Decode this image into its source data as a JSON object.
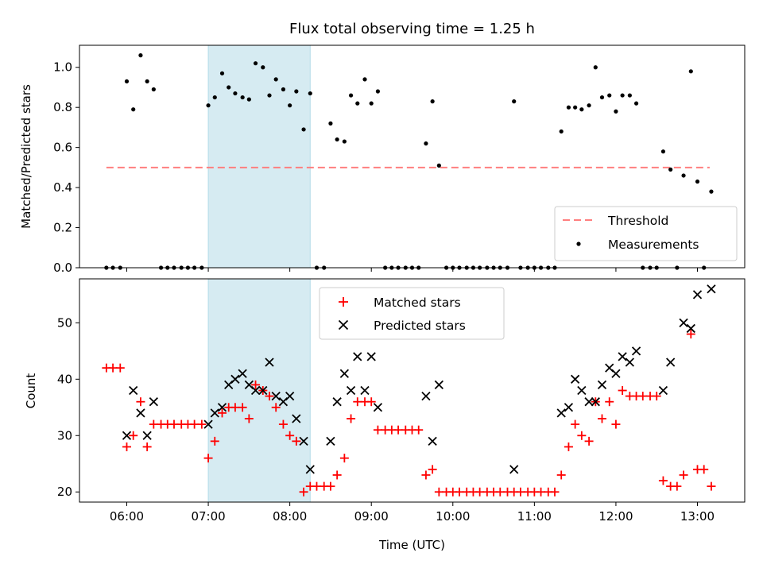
{
  "chart_data": [
    {
      "type": "scatter",
      "title": "Flux total observing time = 1.25 h",
      "ylabel": "Matched/Predicted stars",
      "xlabel": "",
      "xlim": [
        5.42,
        13.58
      ],
      "ylim": [
        0.0,
        1.11
      ],
      "yticks": [
        0.0,
        0.2,
        0.4,
        0.6,
        0.8,
        1.0
      ],
      "ytick_labels": [
        "0.0",
        "0.2",
        "0.4",
        "0.6",
        "0.8",
        "1.0"
      ],
      "xticks": [
        6,
        7,
        8,
        9,
        10,
        11,
        12,
        13
      ],
      "show_xtick_labels": false,
      "grid": false,
      "highlight_span": [
        7.0,
        8.25
      ],
      "highlight_color": "#add8e6",
      "legend_position": "lower-right",
      "threshold": {
        "name": "Threshold",
        "y": 0.5,
        "x_range": [
          5.75,
          13.15
        ],
        "color": "#ff7f7f",
        "style": "dashed"
      },
      "series": [
        {
          "name": "Measurements",
          "marker": "dot",
          "color": "#000000",
          "points": [
            [
              5.75,
              0.0
            ],
            [
              5.83,
              0.0
            ],
            [
              5.92,
              0.0
            ],
            [
              6.0,
              0.93
            ],
            [
              6.08,
              0.79
            ],
            [
              6.17,
              1.06
            ],
            [
              6.25,
              0.93
            ],
            [
              6.33,
              0.89
            ],
            [
              6.42,
              0.0
            ],
            [
              6.5,
              0.0
            ],
            [
              6.58,
              0.0
            ],
            [
              6.67,
              0.0
            ],
            [
              6.75,
              0.0
            ],
            [
              6.83,
              0.0
            ],
            [
              6.92,
              0.0
            ],
            [
              7.0,
              0.81
            ],
            [
              7.08,
              0.85
            ],
            [
              7.17,
              0.97
            ],
            [
              7.25,
              0.9
            ],
            [
              7.33,
              0.87
            ],
            [
              7.42,
              0.85
            ],
            [
              7.5,
              0.84
            ],
            [
              7.58,
              1.02
            ],
            [
              7.67,
              1.0
            ],
            [
              7.75,
              0.86
            ],
            [
              7.83,
              0.94
            ],
            [
              7.92,
              0.89
            ],
            [
              8.0,
              0.81
            ],
            [
              8.08,
              0.88
            ],
            [
              8.17,
              0.69
            ],
            [
              8.25,
              0.87
            ],
            [
              8.33,
              0.0
            ],
            [
              8.42,
              0.0
            ],
            [
              8.5,
              0.72
            ],
            [
              8.58,
              0.64
            ],
            [
              8.67,
              0.63
            ],
            [
              8.75,
              0.86
            ],
            [
              8.83,
              0.82
            ],
            [
              8.92,
              0.94
            ],
            [
              9.0,
              0.82
            ],
            [
              9.08,
              0.88
            ],
            [
              9.17,
              0.0
            ],
            [
              9.25,
              0.0
            ],
            [
              9.33,
              0.0
            ],
            [
              9.42,
              0.0
            ],
            [
              9.5,
              0.0
            ],
            [
              9.58,
              0.0
            ],
            [
              9.67,
              0.62
            ],
            [
              9.75,
              0.83
            ],
            [
              9.83,
              0.51
            ],
            [
              9.92,
              0.0
            ],
            [
              10.0,
              0.0
            ],
            [
              10.08,
              0.0
            ],
            [
              10.17,
              0.0
            ],
            [
              10.25,
              0.0
            ],
            [
              10.33,
              0.0
            ],
            [
              10.42,
              0.0
            ],
            [
              10.5,
              0.0
            ],
            [
              10.58,
              0.0
            ],
            [
              10.67,
              0.0
            ],
            [
              10.75,
              0.83
            ],
            [
              10.83,
              0.0
            ],
            [
              10.92,
              0.0
            ],
            [
              11.0,
              0.0
            ],
            [
              11.08,
              0.0
            ],
            [
              11.17,
              0.0
            ],
            [
              11.25,
              0.0
            ],
            [
              11.33,
              0.68
            ],
            [
              11.42,
              0.8
            ],
            [
              11.5,
              0.8
            ],
            [
              11.58,
              0.79
            ],
            [
              11.67,
              0.81
            ],
            [
              11.75,
              1.0
            ],
            [
              11.83,
              0.85
            ],
            [
              11.92,
              0.86
            ],
            [
              12.0,
              0.78
            ],
            [
              12.08,
              0.86
            ],
            [
              12.17,
              0.86
            ],
            [
              12.25,
              0.82
            ],
            [
              12.33,
              0.0
            ],
            [
              12.42,
              0.0
            ],
            [
              12.5,
              0.0
            ],
            [
              12.58,
              0.58
            ],
            [
              12.67,
              0.49
            ],
            [
              12.75,
              0.0
            ],
            [
              12.83,
              0.46
            ],
            [
              12.92,
              0.98
            ],
            [
              13.0,
              0.43
            ],
            [
              13.08,
              0.0
            ],
            [
              13.17,
              0.38
            ]
          ]
        }
      ]
    },
    {
      "type": "scatter",
      "title": "",
      "ylabel": "Count",
      "xlabel": "Time (UTC)",
      "xlim": [
        5.42,
        13.58
      ],
      "ylim": [
        18.2,
        57.8
      ],
      "yticks": [
        20,
        30,
        40,
        50
      ],
      "ytick_labels": [
        "20",
        "30",
        "40",
        "50"
      ],
      "xticks": [
        6,
        7,
        8,
        9,
        10,
        11,
        12,
        13
      ],
      "xtick_labels": [
        "06:00",
        "07:00",
        "08:00",
        "09:00",
        "10:00",
        "11:00",
        "12:00",
        "13:00"
      ],
      "grid": false,
      "highlight_span": [
        7.0,
        8.25
      ],
      "highlight_color": "#add8e6",
      "legend_position": "upper-center",
      "series": [
        {
          "name": "Matched stars",
          "marker": "plus",
          "color": "#ff0000",
          "points": [
            [
              5.75,
              42
            ],
            [
              5.83,
              42
            ],
            [
              5.92,
              42
            ],
            [
              6.0,
              28
            ],
            [
              6.08,
              30
            ],
            [
              6.17,
              36
            ],
            [
              6.25,
              28
            ],
            [
              6.33,
              32
            ],
            [
              6.42,
              32
            ],
            [
              6.5,
              32
            ],
            [
              6.58,
              32
            ],
            [
              6.67,
              32
            ],
            [
              6.75,
              32
            ],
            [
              6.83,
              32
            ],
            [
              6.92,
              32
            ],
            [
              7.0,
              26
            ],
            [
              7.08,
              29
            ],
            [
              7.17,
              34
            ],
            [
              7.25,
              35
            ],
            [
              7.33,
              35
            ],
            [
              7.42,
              35
            ],
            [
              7.5,
              33
            ],
            [
              7.58,
              39
            ],
            [
              7.67,
              38
            ],
            [
              7.75,
              37
            ],
            [
              7.83,
              35
            ],
            [
              7.92,
              32
            ],
            [
              8.0,
              30
            ],
            [
              8.08,
              29
            ],
            [
              8.17,
              20
            ],
            [
              8.25,
              21
            ],
            [
              8.33,
              21
            ],
            [
              8.42,
              21
            ],
            [
              8.5,
              21
            ],
            [
              8.58,
              23
            ],
            [
              8.67,
              26
            ],
            [
              8.75,
              33
            ],
            [
              8.83,
              36
            ],
            [
              8.92,
              36
            ],
            [
              9.0,
              36
            ],
            [
              9.08,
              31
            ],
            [
              9.17,
              31
            ],
            [
              9.25,
              31
            ],
            [
              9.33,
              31
            ],
            [
              9.42,
              31
            ],
            [
              9.5,
              31
            ],
            [
              9.58,
              31
            ],
            [
              9.67,
              23
            ],
            [
              9.75,
              24
            ],
            [
              9.83,
              20
            ],
            [
              9.92,
              20
            ],
            [
              10.0,
              20
            ],
            [
              10.08,
              20
            ],
            [
              10.17,
              20
            ],
            [
              10.25,
              20
            ],
            [
              10.33,
              20
            ],
            [
              10.42,
              20
            ],
            [
              10.5,
              20
            ],
            [
              10.58,
              20
            ],
            [
              10.67,
              20
            ],
            [
              10.75,
              20
            ],
            [
              10.83,
              20
            ],
            [
              10.92,
              20
            ],
            [
              11.0,
              20
            ],
            [
              11.08,
              20
            ],
            [
              11.17,
              20
            ],
            [
              11.25,
              20
            ],
            [
              11.33,
              23
            ],
            [
              11.42,
              28
            ],
            [
              11.5,
              32
            ],
            [
              11.58,
              30
            ],
            [
              11.67,
              29
            ],
            [
              11.75,
              36
            ],
            [
              11.83,
              33
            ],
            [
              11.92,
              36
            ],
            [
              12.0,
              32
            ],
            [
              12.08,
              38
            ],
            [
              12.17,
              37
            ],
            [
              12.25,
              37
            ],
            [
              12.33,
              37
            ],
            [
              12.42,
              37
            ],
            [
              12.5,
              37
            ],
            [
              12.58,
              22
            ],
            [
              12.67,
              21
            ],
            [
              12.75,
              21
            ],
            [
              12.83,
              23
            ],
            [
              12.92,
              48
            ],
            [
              13.0,
              24
            ],
            [
              13.08,
              24
            ],
            [
              13.17,
              21
            ]
          ]
        },
        {
          "name": "Predicted stars",
          "marker": "x",
          "color": "#000000",
          "points": [
            [
              6.0,
              30
            ],
            [
              6.08,
              38
            ],
            [
              6.17,
              34
            ],
            [
              6.25,
              30
            ],
            [
              6.33,
              36
            ],
            [
              7.0,
              32
            ],
            [
              7.08,
              34
            ],
            [
              7.17,
              35
            ],
            [
              7.25,
              39
            ],
            [
              7.33,
              40
            ],
            [
              7.42,
              41
            ],
            [
              7.5,
              39
            ],
            [
              7.58,
              38
            ],
            [
              7.67,
              38
            ],
            [
              7.75,
              43
            ],
            [
              7.83,
              37
            ],
            [
              7.92,
              36
            ],
            [
              8.0,
              37
            ],
            [
              8.08,
              33
            ],
            [
              8.17,
              29
            ],
            [
              8.25,
              24
            ],
            [
              8.5,
              29
            ],
            [
              8.58,
              36
            ],
            [
              8.67,
              41
            ],
            [
              8.75,
              38
            ],
            [
              8.83,
              44
            ],
            [
              8.92,
              38
            ],
            [
              9.0,
              44
            ],
            [
              9.08,
              35
            ],
            [
              9.67,
              37
            ],
            [
              9.75,
              29
            ],
            [
              9.83,
              39
            ],
            [
              10.75,
              24
            ],
            [
              11.33,
              34
            ],
            [
              11.42,
              35
            ],
            [
              11.5,
              40
            ],
            [
              11.58,
              38
            ],
            [
              11.67,
              36
            ],
            [
              11.75,
              36
            ],
            [
              11.83,
              39
            ],
            [
              11.92,
              42
            ],
            [
              12.0,
              41
            ],
            [
              12.08,
              44
            ],
            [
              12.17,
              43
            ],
            [
              12.25,
              45
            ],
            [
              12.58,
              38
            ],
            [
              12.67,
              43
            ],
            [
              12.83,
              50
            ],
            [
              12.92,
              49
            ],
            [
              13.0,
              55
            ],
            [
              13.17,
              56
            ]
          ]
        }
      ]
    }
  ]
}
